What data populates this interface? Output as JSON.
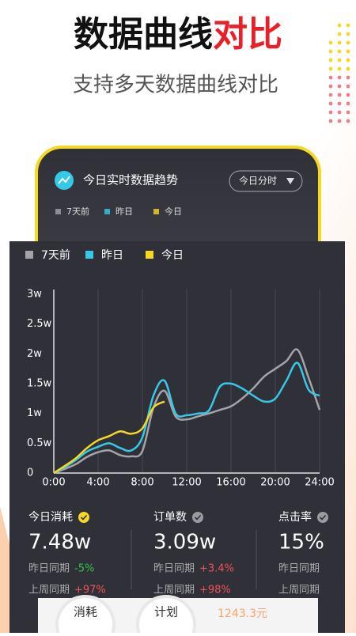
{
  "header": {
    "title_main": "数据曲线",
    "title_accent": "对比",
    "subtitle": "支持多天数据曲线对比"
  },
  "phone": {
    "title": "今日实时数据趋势",
    "dropdown": "今日分时",
    "legend": [
      "7天前",
      "昨日",
      "今日"
    ]
  },
  "chart_data": {
    "type": "line",
    "x": [
      0,
      1,
      2,
      3,
      4,
      5,
      6,
      7,
      8,
      9,
      10,
      11,
      12,
      13,
      14,
      15,
      16,
      17,
      18,
      19,
      20,
      21,
      22,
      23,
      24
    ],
    "series": [
      {
        "name": "7天前",
        "color": "#a3a3a8",
        "values": [
          0,
          0.07,
          0.15,
          0.27,
          0.35,
          0.38,
          0.3,
          0.28,
          0.37,
          1.1,
          1.38,
          0.95,
          0.9,
          0.95,
          1.0,
          1.06,
          1.12,
          1.25,
          1.42,
          1.62,
          1.75,
          1.88,
          2.07,
          1.6,
          1.06
        ]
      },
      {
        "name": "昨日",
        "color": "#35c9e8",
        "values": [
          0,
          0.1,
          0.22,
          0.36,
          0.44,
          0.5,
          0.42,
          0.38,
          0.6,
          1.3,
          1.55,
          1.0,
          0.97,
          1.0,
          1.05,
          1.45,
          1.5,
          1.42,
          1.3,
          1.2,
          1.25,
          1.55,
          1.85,
          1.4,
          1.3
        ]
      },
      {
        "name": "今日",
        "color": "#f5d823",
        "values": [
          0,
          0.12,
          0.25,
          0.42,
          0.55,
          0.62,
          0.7,
          0.66,
          0.75,
          1.1,
          1.2,
          null,
          null,
          null,
          null,
          null,
          null,
          null,
          null,
          null,
          null,
          null,
          null,
          null,
          null
        ]
      }
    ],
    "xlim": [
      0,
      24
    ],
    "xticks": [
      {
        "value": 0,
        "label": "0:00"
      },
      {
        "value": 4,
        "label": "4:00"
      },
      {
        "value": 8,
        "label": "8:00"
      },
      {
        "value": 12,
        "label": "12:00"
      },
      {
        "value": 16,
        "label": "16:00"
      },
      {
        "value": 20,
        "label": "20:00"
      },
      {
        "value": 24,
        "label": "24:00"
      }
    ],
    "ylim": [
      0,
      3
    ],
    "yticks": [
      0,
      {
        "value": 0.5,
        "label": "0.5w"
      },
      {
        "value": 1,
        "label": "1w"
      },
      {
        "value": 1.5,
        "label": "1.5w"
      },
      {
        "value": 2,
        "label": "2w"
      },
      {
        "value": 2.5,
        "label": "2.5w"
      },
      {
        "value": 3,
        "label": "3w"
      }
    ],
    "grid": true
  },
  "stats": [
    {
      "label": "今日消耗",
      "value": "7.48w",
      "badge_color": "#f5d823",
      "rows": [
        {
          "label": "昨日同期",
          "change": "-5%"
        },
        {
          "label": "上周同期",
          "change": "+97%"
        }
      ]
    },
    {
      "label": "订单数",
      "value": "3.09w",
      "badge_color": "#9a9a9f",
      "rows": [
        {
          "label": "昨日同期",
          "change": "+3.4%"
        },
        {
          "label": "上周同期",
          "change": "+98%"
        }
      ]
    },
    {
      "label": "点击率",
      "value": "15%",
      "badge_color": "#9a9a9f",
      "rows": [
        {
          "label": "昨日同期",
          "change": null
        },
        {
          "label": "上周同期",
          "change": null
        }
      ]
    }
  ],
  "bottom": {
    "buttons": [
      "消耗",
      "计划"
    ],
    "amount": "1243.3元"
  }
}
